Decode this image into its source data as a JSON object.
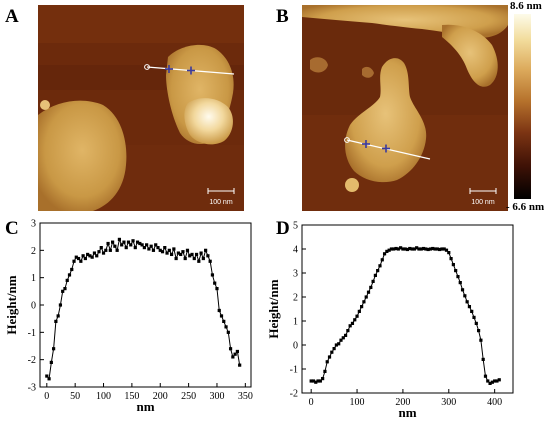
{
  "panels": {
    "a": "A",
    "b": "B",
    "c": "C",
    "d": "D"
  },
  "afm": {
    "scalebar_a": "100 nm",
    "scalebar_b": "100 nm"
  },
  "colorbar": {
    "max_label": "8.6 nm",
    "min_label": "- 6.6 nm",
    "colors": [
      "#fdfbe9",
      "#f2dc9c",
      "#dcaa5c",
      "#b6722c",
      "#7c3413",
      "#3f1206",
      "#000000"
    ]
  },
  "chart_data": [
    {
      "type": "line",
      "panel": "C",
      "xlabel": "nm",
      "ylabel": "Height/nm",
      "xlim": [
        -12,
        360
      ],
      "ylim": [
        -3,
        3
      ],
      "xticks": [
        0,
        50,
        100,
        150,
        200,
        250,
        300,
        350
      ],
      "yticks": [
        -3,
        -2,
        -1,
        0,
        1,
        2,
        3
      ],
      "marker": "square",
      "color": "#000000",
      "x": [
        0,
        4,
        8,
        12,
        16,
        20,
        24,
        28,
        32,
        36,
        40,
        44,
        48,
        52,
        56,
        60,
        64,
        68,
        72,
        76,
        80,
        84,
        88,
        92,
        96,
        100,
        104,
        108,
        112,
        116,
        120,
        124,
        128,
        132,
        136,
        140,
        144,
        148,
        152,
        156,
        160,
        164,
        168,
        172,
        176,
        180,
        184,
        188,
        192,
        196,
        200,
        204,
        208,
        212,
        216,
        220,
        224,
        228,
        232,
        236,
        240,
        244,
        248,
        252,
        256,
        260,
        264,
        268,
        272,
        276,
        280,
        284,
        288,
        292,
        296,
        300,
        304,
        308,
        312,
        316,
        320,
        324,
        328,
        332,
        336,
        340
      ],
      "y": [
        -2.6,
        -2.7,
        -2.1,
        -1.6,
        -0.6,
        -0.4,
        0.0,
        0.5,
        0.6,
        0.9,
        1.1,
        1.3,
        1.6,
        1.75,
        1.7,
        1.6,
        1.8,
        1.7,
        1.85,
        1.8,
        1.75,
        1.9,
        1.8,
        1.95,
        2.1,
        1.9,
        2.0,
        2.25,
        2.0,
        2.3,
        2.15,
        2.0,
        2.4,
        2.2,
        2.3,
        2.1,
        2.3,
        2.2,
        2.35,
        2.1,
        2.3,
        2.25,
        2.2,
        2.1,
        2.2,
        2.05,
        2.15,
        2.0,
        2.2,
        2.1,
        2.0,
        1.95,
        2.1,
        1.9,
        2.0,
        1.85,
        2.05,
        1.7,
        1.9,
        1.85,
        1.95,
        1.7,
        2.0,
        1.8,
        1.85,
        1.7,
        1.85,
        1.6,
        1.9,
        1.7,
        2.0,
        1.8,
        1.6,
        1.1,
        0.8,
        0.6,
        -0.2,
        -0.4,
        -0.6,
        -0.8,
        -1.0,
        -1.6,
        -1.9,
        -1.8,
        -1.7,
        -2.2
      ]
    },
    {
      "type": "line",
      "panel": "D",
      "xlabel": "nm",
      "ylabel": "Height/nm",
      "xlim": [
        -20,
        440
      ],
      "ylim": [
        -2,
        5
      ],
      "xticks": [
        0,
        100,
        200,
        300,
        400
      ],
      "yticks": [
        -2,
        -1,
        0,
        1,
        2,
        3,
        4,
        5
      ],
      "marker": "square",
      "color": "#000000",
      "x": [
        0,
        5,
        10,
        15,
        20,
        25,
        30,
        35,
        40,
        45,
        50,
        55,
        60,
        65,
        70,
        75,
        80,
        85,
        90,
        95,
        100,
        105,
        110,
        115,
        120,
        125,
        130,
        135,
        140,
        145,
        150,
        155,
        160,
        165,
        170,
        175,
        180,
        185,
        190,
        195,
        200,
        205,
        210,
        215,
        220,
        225,
        230,
        235,
        240,
        245,
        250,
        255,
        260,
        265,
        270,
        275,
        280,
        285,
        290,
        295,
        300,
        305,
        310,
        315,
        320,
        325,
        330,
        335,
        340,
        345,
        350,
        355,
        360,
        365,
        370,
        375,
        380,
        385,
        390,
        395,
        400,
        405,
        410
      ],
      "y": [
        -1.5,
        -1.5,
        -1.55,
        -1.5,
        -1.5,
        -1.4,
        -1.1,
        -0.7,
        -0.5,
        -0.3,
        -0.15,
        0.0,
        0.05,
        0.2,
        0.3,
        0.4,
        0.6,
        0.8,
        0.9,
        1.05,
        1.2,
        1.4,
        1.6,
        1.8,
        2.0,
        2.2,
        2.4,
        2.65,
        2.9,
        3.1,
        3.3,
        3.55,
        3.8,
        3.9,
        3.95,
        4.0,
        4.0,
        4.02,
        4.0,
        4.05,
        4.0,
        4.0,
        3.98,
        4.02,
        4.0,
        4.0,
        4.05,
        4.0,
        4.0,
        4.02,
        4.0,
        3.98,
        4.0,
        4.02,
        4.0,
        4.0,
        3.98,
        4.0,
        4.0,
        3.95,
        3.85,
        3.6,
        3.35,
        3.1,
        2.85,
        2.6,
        2.3,
        2.05,
        1.8,
        1.6,
        1.4,
        1.15,
        0.9,
        0.6,
        0.2,
        -0.6,
        -1.3,
        -1.5,
        -1.6,
        -1.55,
        -1.5,
        -1.5,
        -1.45
      ]
    }
  ]
}
